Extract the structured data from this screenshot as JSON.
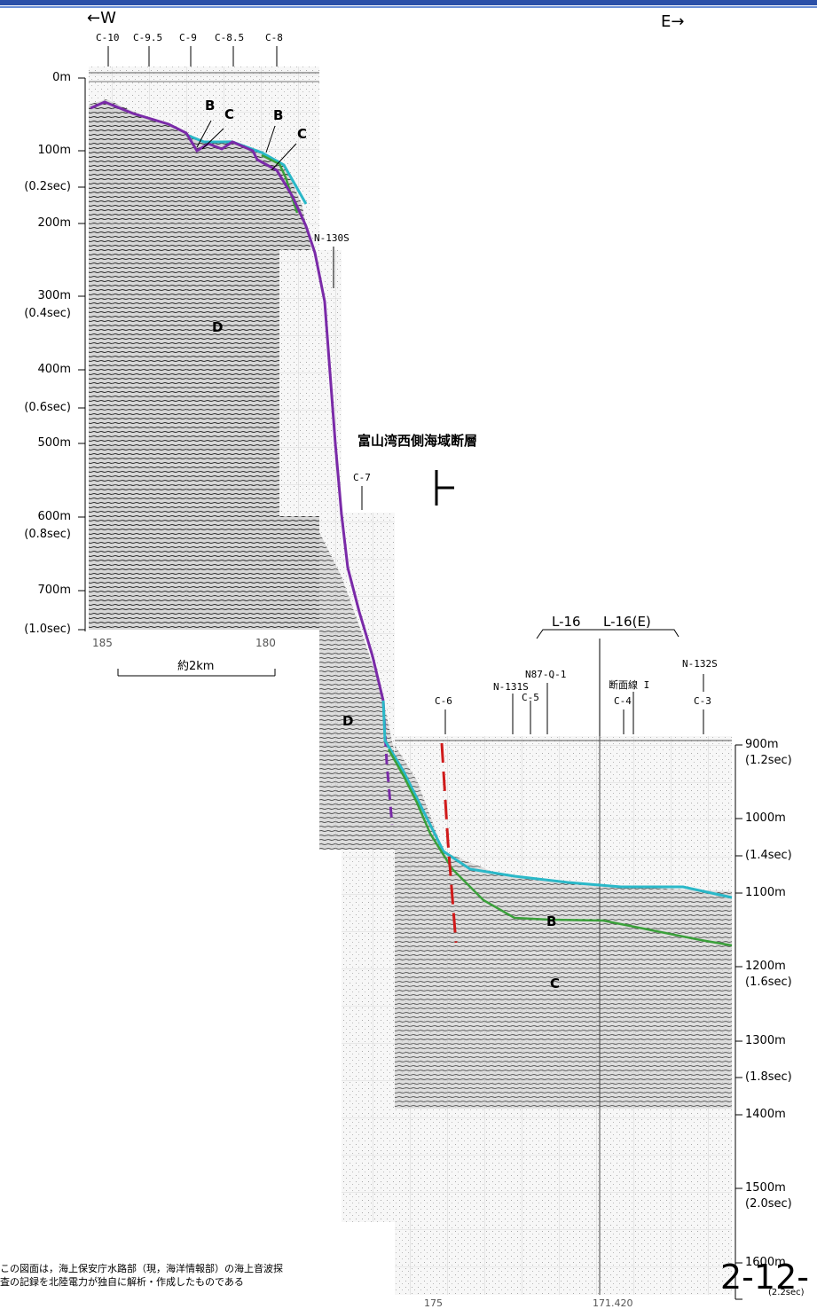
{
  "direction": {
    "west": "←W",
    "east": "E→"
  },
  "left_depth_labels": [
    "0m",
    "100m",
    "(0.2sec)",
    "200m",
    "300m",
    "(0.4sec)",
    "400m",
    "(0.6sec)",
    "500m",
    "600m",
    "(0.8sec)",
    "700m",
    "(1.0sec)"
  ],
  "right_depth_labels": [
    "900m",
    "(1.2sec)",
    "1000m",
    "(1.4sec)",
    "1100m",
    "1200m",
    "(1.6sec)",
    "1300m",
    "(1.8sec)",
    "1400m",
    "1500m",
    "(2.0sec)",
    "1600m",
    "(2.2sec)"
  ],
  "shot_points_top": [
    "C-10",
    "C-9.5",
    "C-9",
    "C-8.5",
    "C-8"
  ],
  "line_labels": {
    "n130s": "N-130S",
    "c7": "C-7",
    "c6": "C-6",
    "n131s": "N-131S",
    "c5": "C-5",
    "n87": "N87-Q-1",
    "danmen": "断面線 I",
    "c4": "C-4",
    "n132s": "N-132S",
    "c3": "C-3",
    "l16": "L-16",
    "l16e": "L-16(E)"
  },
  "bottom_axis_left": {
    "left": "185",
    "right": "180"
  },
  "bottom_axis_right": {
    "left": "175",
    "right": "171.420"
  },
  "scale_label": "約2km",
  "fault_name": "富山湾西側海域断層",
  "layers": {
    "B": "B",
    "C": "C",
    "D": "D"
  },
  "note_line1": "この図面は，海上保安庁水路部（現，海洋情報部）の海上音波探",
  "note_line2": "査の記録を北陸電力が独自に解析・作成したものである",
  "page_number": "2-12-",
  "colors": {
    "header": "#2a4fa8",
    "cyan": "#2ab8c8",
    "green": "#3aa03a",
    "purple": "#7a2aa8",
    "red": "#d01a1a"
  }
}
